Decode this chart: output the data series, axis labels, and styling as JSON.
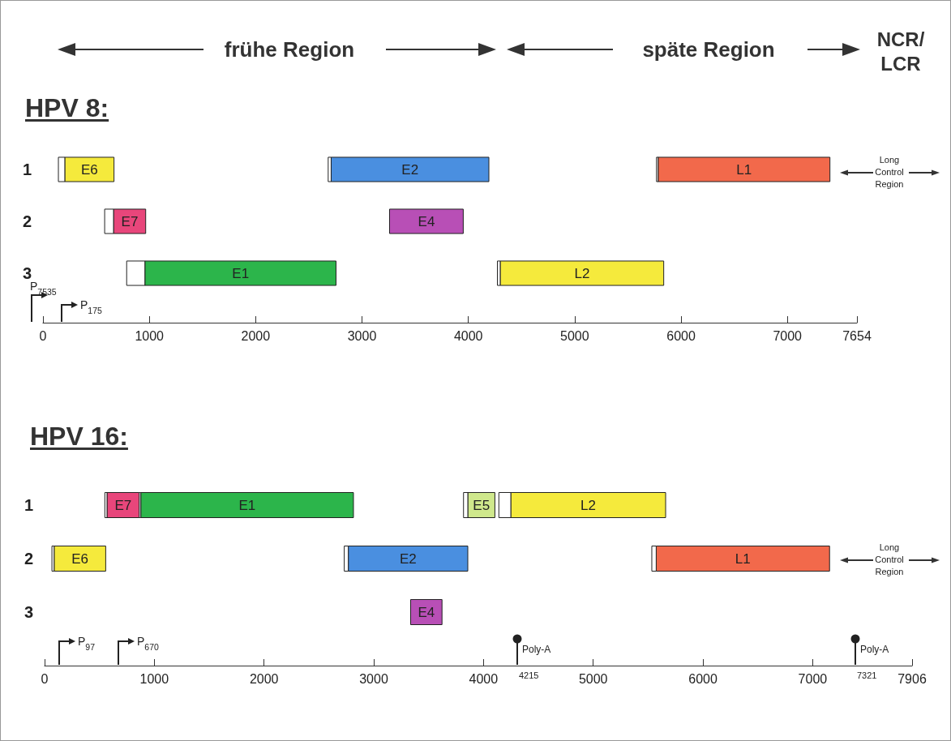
{
  "chart_data": [
    {
      "type": "bar",
      "orientation": "horizontal",
      "title": "HPV 8:",
      "categories": [
        "1",
        "2",
        "3"
      ],
      "xlim": [
        0,
        7654
      ],
      "xticks": [
        0,
        1000,
        2000,
        3000,
        4000,
        5000,
        6000,
        7000,
        7654
      ],
      "annotations": [
        "frühe Region",
        "späte Region",
        "NCR/LCR",
        "Long Control Region",
        "P$_{7535}$",
        "P$_{175}$"
      ],
      "series": [
        {
          "color": "#ffffff",
          "base": [
            145,
            580,
            787
          ],
          "values": [
            62,
            85,
            173
          ]
        },
        {
          "color": "#ffffff",
          "base": [
            2682,
            null,
            4273
          ],
          "values": [
            28,
            null,
            28
          ]
        },
        {
          "color": "#ffffff",
          "base": [
            5769,
            null,
            null
          ],
          "values": [
            17,
            null,
            null
          ]
        },
        {
          "name": "E6",
          "color": "#f5ea3c",
          "base": [
            207,
            null,
            null
          ],
          "values": [
            461,
            null,
            null
          ]
        },
        {
          "name": "E2",
          "color": "#4a8fe0",
          "base": [
            2710,
            null,
            null
          ],
          "values": [
            1483,
            null,
            null
          ]
        },
        {
          "name": "L1",
          "color": "#f2694b",
          "base": [
            5786,
            null,
            null
          ],
          "values": [
            1614,
            null,
            null
          ]
        },
        {
          "name": "E7",
          "color": "#e8467b",
          "base": [
            null,
            665,
            null
          ],
          "values": [
            null,
            301,
            null
          ]
        },
        {
          "name": "E4",
          "color": "#b84fb6",
          "base": [
            null,
            3259,
            null
          ],
          "values": [
            null,
            693,
            null
          ]
        },
        {
          "name": "E1",
          "color": "#2cb54b",
          "base": [
            null,
            null,
            960
          ],
          "values": [
            null,
            null,
            1796
          ]
        },
        {
          "name": "L2",
          "color": "#f5ea3c",
          "base": [
            null,
            null,
            4301
          ],
          "values": [
            null,
            null,
            1536
          ]
        }
      ]
    },
    {
      "type": "bar",
      "orientation": "horizontal",
      "title": "HPV 16:",
      "categories": [
        "1",
        "2",
        "3"
      ],
      "xlim": [
        0,
        7906
      ],
      "xticks": [
        0,
        1000,
        2000,
        3000,
        4000,
        5000,
        6000,
        7000,
        7906
      ],
      "annotations": [
        "P$_{97}$",
        "P$_{670}$",
        "Poly-A",
        "Poly-A",
        "Long Control Region",
        "4215",
        "7321"
      ],
      "series": [
        {
          "name": "E7",
          "color": "#e8467b",
          "base": [
            569,
            null,
            null
          ],
          "values": [
            294,
            null,
            null
          ]
        },
        {
          "name": "E1",
          "color": "#2cb54b",
          "base": [
            877,
            null,
            null
          ],
          "values": [
            1938,
            null,
            null
          ]
        },
        {
          "name": "E5",
          "color": "#cfe88c",
          "base": [
            3857,
            null,
            null
          ],
          "values": [
            247,
            null,
            null
          ]
        },
        {
          "name": "L2",
          "color": "#f5ea3c",
          "base": [
            4249,
            null,
            null
          ],
          "values": [
            1411,
            null,
            null
          ]
        },
        {
          "name": "E6",
          "color": "#f5ea3c",
          "base": [
            null,
            87,
            null
          ],
          "values": [
            null,
            470,
            null
          ]
        },
        {
          "name": "E2",
          "color": "#4a8fe0",
          "base": [
            null,
            2768,
            null
          ],
          "values": [
            null,
            1089,
            null
          ]
        },
        {
          "name": "L1",
          "color": "#f2694b",
          "base": [
            null,
            5574,
            null
          ],
          "values": [
            null,
            1580,
            null
          ]
        },
        {
          "name": "E4",
          "color": "#b84fb6",
          "base": [
            null,
            null,
            3336
          ],
          "values": [
            null,
            null,
            286
          ]
        },
        {
          "color": "#ffffff",
          "base": [
            549,
            67,
            null
          ],
          "values": [
            20,
            20,
            null
          ]
        },
        {
          "color": "#ffffff",
          "base": [
            863,
            2731,
            null
          ],
          "values": [
            14,
            37,
            null
          ]
        },
        {
          "color": "#ffffff",
          "base": [
            3818,
            5534,
            null
          ],
          "values": [
            39,
            40,
            null
          ]
        },
        {
          "color": "#ffffff",
          "base": [
            4140,
            null,
            null
          ],
          "values": [
            109,
            null,
            null
          ]
        }
      ]
    }
  ]
}
